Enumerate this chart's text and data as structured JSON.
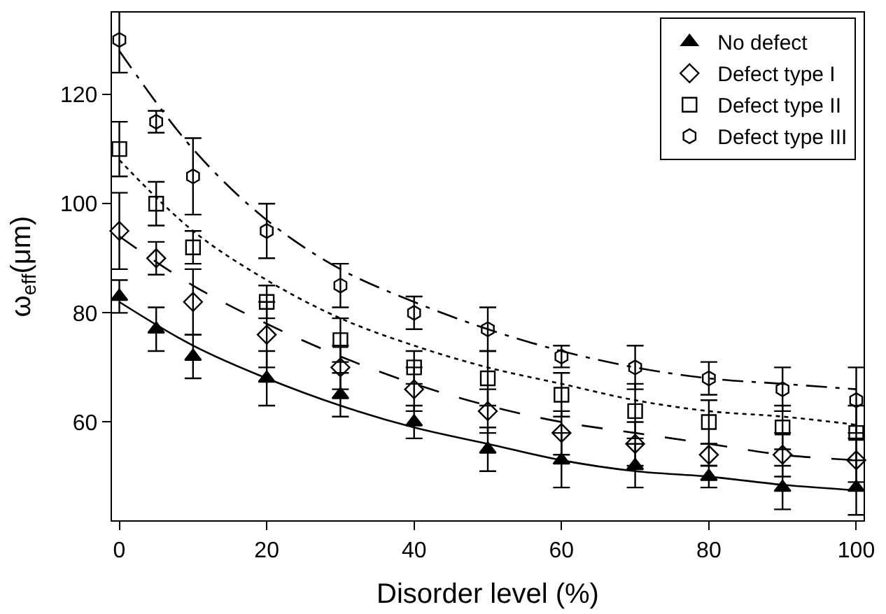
{
  "chart_data": {
    "type": "scatter",
    "xlabel": "Disorder level (%)",
    "ylabel": "ω$_{eff}$(μm)",
    "xlim": [
      -1,
      101
    ],
    "ylim": [
      42,
      135
    ],
    "xticks": [
      0,
      20,
      40,
      60,
      80,
      100
    ],
    "yticks": [
      60,
      80,
      100,
      120
    ],
    "legend": "top right",
    "series": [
      {
        "name": "No defect",
        "marker": "triangle",
        "color": "#000000",
        "x": [
          0,
          5,
          10,
          20,
          30,
          40,
          50,
          60,
          70,
          80,
          90,
          100
        ],
        "values": [
          83,
          77,
          72,
          68,
          65,
          60,
          55,
          53,
          52,
          50,
          48,
          48
        ],
        "errors": [
          3,
          4,
          4,
          5,
          4,
          3,
          4,
          5,
          4,
          2,
          4,
          5
        ]
      },
      {
        "name": "Defect type I",
        "marker": "diamond",
        "color": "#000000",
        "x": [
          0,
          5,
          10,
          20,
          30,
          40,
          50,
          60,
          70,
          80,
          90,
          100
        ],
        "values": [
          95,
          90,
          82,
          76,
          70,
          66,
          62,
          58,
          56,
          54,
          54,
          53
        ],
        "errors": [
          7,
          3,
          6,
          6,
          4,
          4,
          4,
          4,
          4,
          2,
          4,
          4
        ]
      },
      {
        "name": "Defect type II",
        "marker": "square",
        "color": "#000000",
        "x": [
          0,
          5,
          10,
          20,
          30,
          40,
          50,
          60,
          70,
          80,
          90,
          100
        ],
        "values": [
          110,
          100,
          92,
          82,
          75,
          70,
          68,
          65,
          62,
          60,
          59,
          58
        ],
        "errors": [
          5,
          4,
          3,
          3,
          4,
          3,
          5,
          4,
          5,
          4,
          4,
          5
        ]
      },
      {
        "name": "Defect type III",
        "marker": "circle",
        "color": "#000000",
        "x": [
          0,
          5,
          10,
          20,
          30,
          40,
          50,
          60,
          70,
          80,
          90,
          100
        ],
        "values": [
          130,
          115,
          105,
          95,
          85,
          80,
          77,
          72,
          70,
          68,
          66,
          64
        ],
        "errors": [
          6,
          2,
          7,
          5,
          4,
          3,
          4,
          2,
          4,
          3,
          4,
          6
        ]
      },
      {
        "type": "line",
        "line_style": "solid",
        "color": "#000000",
        "x": [
          0,
          10,
          20,
          30,
          40,
          50,
          60,
          70,
          80,
          90,
          100
        ],
        "values": [
          82,
          74,
          68,
          63,
          59,
          56,
          53,
          51,
          50,
          48.5,
          47.5
        ]
      },
      {
        "type": "line",
        "line_style": "dashed",
        "color": "#000000",
        "x": [
          0,
          10,
          20,
          30,
          40,
          50,
          60,
          70,
          80,
          90,
          100
        ],
        "values": [
          94,
          85,
          78,
          72,
          67,
          63,
          60,
          58,
          56,
          54,
          53
        ]
      },
      {
        "type": "line",
        "line_style": "dotted",
        "color": "#000000",
        "x": [
          0,
          10,
          20,
          30,
          40,
          50,
          60,
          70,
          80,
          90,
          100
        ],
        "values": [
          108,
          95,
          86,
          79,
          74,
          70,
          67,
          64,
          62,
          61,
          59.5
        ]
      },
      {
        "type": "line",
        "line_style": "dashdot",
        "color": "#000000",
        "x": [
          0,
          10,
          20,
          30,
          40,
          50,
          60,
          70,
          80,
          90,
          100
        ],
        "values": [
          128,
          110,
          97,
          88,
          82,
          77,
          73,
          70,
          68,
          67,
          66
        ]
      }
    ]
  }
}
